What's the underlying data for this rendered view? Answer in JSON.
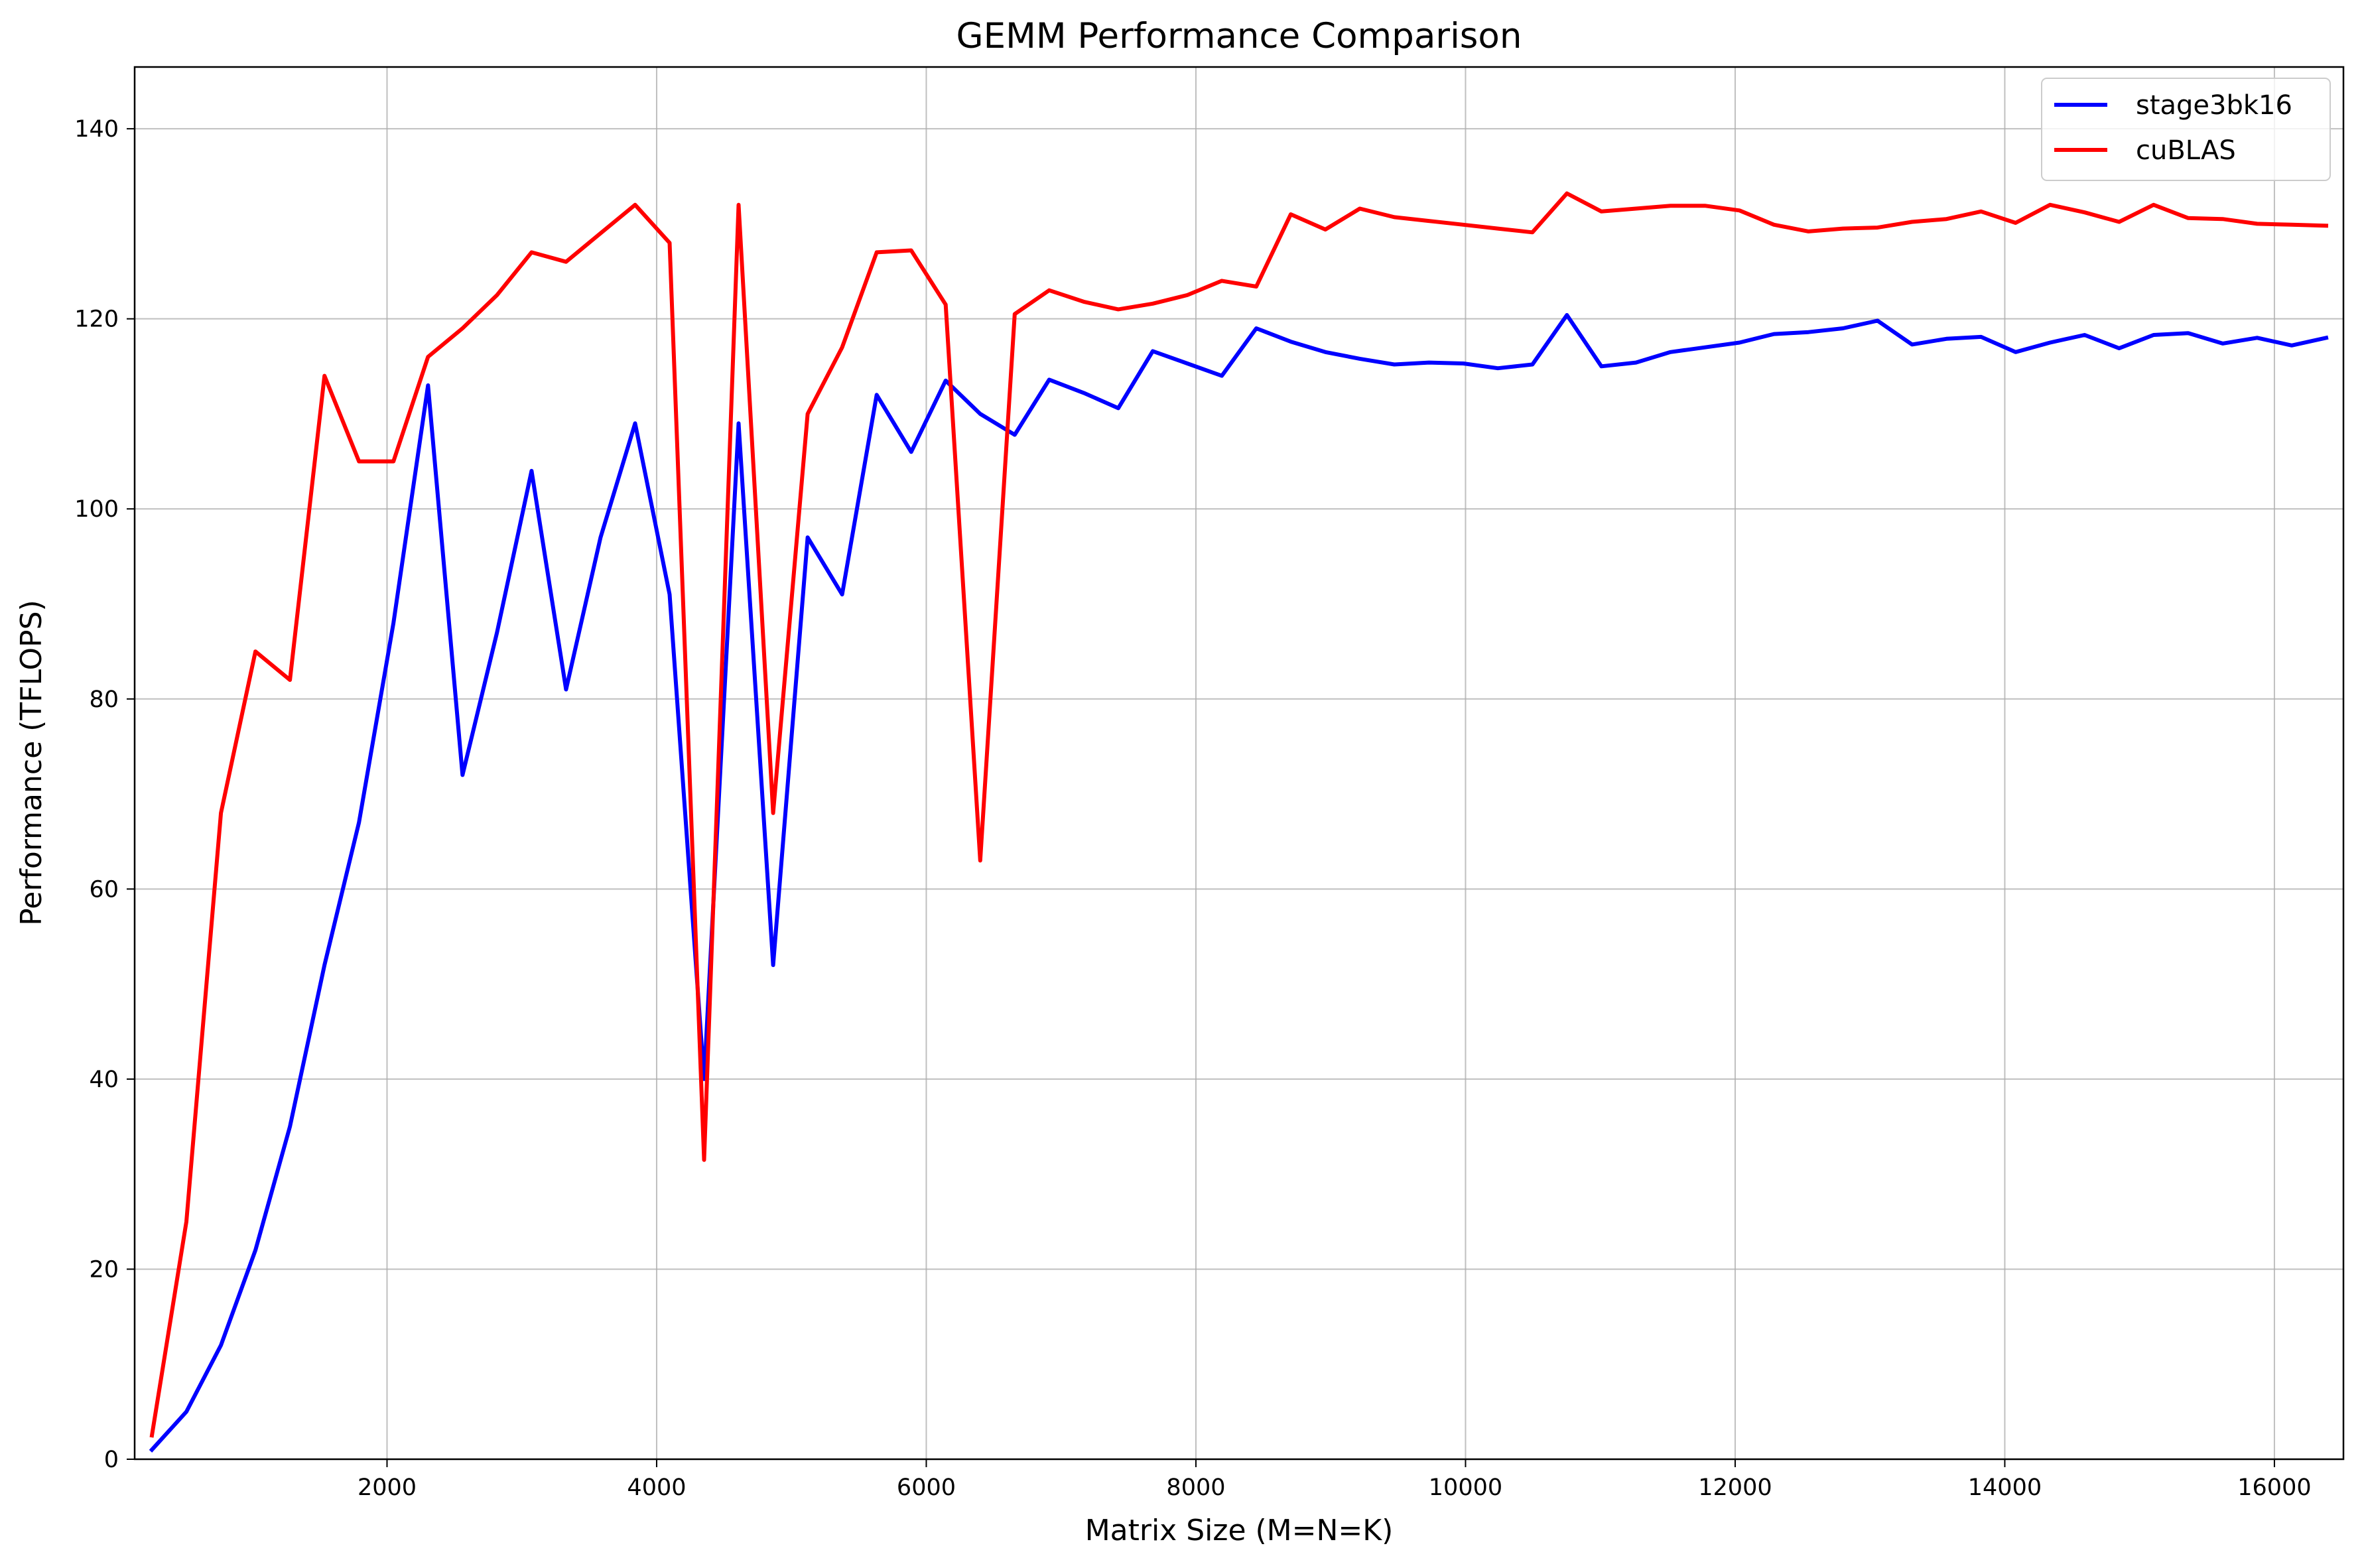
{
  "chart_data": {
    "type": "line",
    "title": "GEMM Performance Comparison",
    "xlabel": "Matrix Size (M=N=K)",
    "ylabel": "Performance (TFLOPS)",
    "xlim": [
      128,
      16512
    ],
    "ylim": [
      0,
      146.5
    ],
    "xticks": [
      2000,
      4000,
      6000,
      8000,
      10000,
      12000,
      14000,
      16000
    ],
    "yticks": [
      0,
      20,
      40,
      60,
      80,
      100,
      120,
      140
    ],
    "grid": true,
    "legend_position": "top-right",
    "x": [
      256,
      512,
      768,
      1024,
      1280,
      1536,
      1792,
      2048,
      2304,
      2560,
      2816,
      3072,
      3328,
      3584,
      3840,
      4096,
      4352,
      4608,
      4864,
      5120,
      5376,
      5632,
      5888,
      6144,
      6400,
      6656,
      6912,
      7168,
      7424,
      7680,
      7936,
      8192,
      8448,
      8704,
      8960,
      9216,
      9472,
      9728,
      9984,
      10240,
      10496,
      10752,
      11008,
      11264,
      11520,
      11776,
      12032,
      12288,
      12544,
      12800,
      13056,
      13312,
      13568,
      13824,
      14080,
      14336,
      14592,
      14848,
      15104,
      15360,
      15616,
      15872,
      16128,
      16384
    ],
    "series": [
      {
        "name": "stage3bk16",
        "color": "#0000ff",
        "values": [
          1.0,
          5.0,
          12.0,
          22.0,
          35.0,
          52.0,
          67.0,
          88.0,
          113.0,
          72.0,
          87.0,
          104.0,
          81.0,
          97.0,
          109.0,
          91.0,
          40.0,
          109.0,
          52.0,
          97.0,
          91.0,
          112.0,
          106.0,
          113.5,
          110.0,
          107.8,
          113.6,
          112.2,
          110.6,
          116.6,
          115.3,
          114.0,
          119.0,
          117.6,
          116.5,
          115.8,
          115.2,
          115.4,
          115.3,
          114.8,
          115.2,
          120.4,
          115.0,
          115.4,
          116.5,
          117.0,
          117.5,
          118.4,
          118.6,
          119.0,
          119.8,
          117.3,
          117.9,
          118.1,
          116.5,
          117.5,
          118.3,
          116.9,
          118.3,
          118.5,
          117.4,
          118.0,
          117.2,
          118.0
        ]
      },
      {
        "name": "cuBLAS",
        "color": "#ff0000",
        "values": [
          2.5,
          25.0,
          68.0,
          85.0,
          82.0,
          114.0,
          105.0,
          105.0,
          116.0,
          119.0,
          122.5,
          127.0,
          126.0,
          129.0,
          132.0,
          128.0,
          31.5,
          132.0,
          68.0,
          110.0,
          117.0,
          127.0,
          127.2,
          121.5,
          63.0,
          120.5,
          123.0,
          121.8,
          121.0,
          121.6,
          122.5,
          124.0,
          123.4,
          131.0,
          129.4,
          131.6,
          130.7,
          130.3,
          129.9,
          129.5,
          129.1,
          133.2,
          131.3,
          131.6,
          131.9,
          131.9,
          131.4,
          129.9,
          129.2,
          129.5,
          129.6,
          130.2,
          130.5,
          131.3,
          130.1,
          132.0,
          131.2,
          130.2,
          132.0,
          130.6,
          130.5,
          130.0,
          129.9,
          129.8
        ]
      }
    ]
  }
}
